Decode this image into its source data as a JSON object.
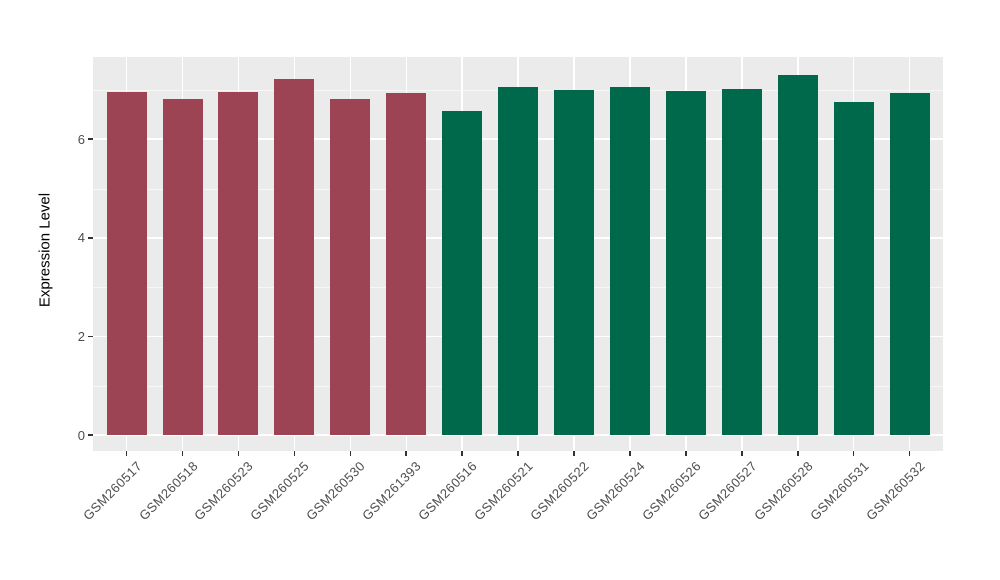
{
  "chart_data": {
    "type": "bar",
    "title": "",
    "xlabel": "",
    "ylabel": "Expression Level",
    "categories": [
      "GSM260517",
      "GSM260518",
      "GSM260523",
      "GSM260525",
      "GSM260530",
      "GSM261393",
      "GSM260516",
      "GSM260521",
      "GSM260522",
      "GSM260524",
      "GSM260526",
      "GSM260527",
      "GSM260528",
      "GSM260531",
      "GSM260532"
    ],
    "values": [
      6.95,
      6.81,
      6.96,
      7.23,
      6.81,
      6.94,
      6.57,
      7.06,
      7.0,
      7.05,
      6.98,
      7.02,
      7.3,
      6.75,
      6.94
    ],
    "bar_colors": [
      "#9C4453",
      "#9C4453",
      "#9C4453",
      "#9C4453",
      "#9C4453",
      "#9C4453",
      "#00694B",
      "#00694B",
      "#00694B",
      "#00694B",
      "#00694B",
      "#00694B",
      "#00694B",
      "#00694B",
      "#00694B"
    ],
    "group_colors": {
      "left_group": "#9C4453",
      "right_group": "#00694B"
    },
    "yticks": [
      "0",
      "2",
      "4",
      "6"
    ],
    "ytick_values": [
      0,
      2,
      4,
      6
    ],
    "minor_gridline_values": [
      1,
      3,
      5,
      7
    ],
    "ylim": [
      0,
      7.67
    ],
    "grid": true,
    "legend": "none",
    "panel_background": "#EBEBEB",
    "gridline_color": "#FFFFFF",
    "tick_label_color": "#4D4D4D",
    "axis_title_color": "#000000",
    "x_label_rotation_deg": 45
  }
}
